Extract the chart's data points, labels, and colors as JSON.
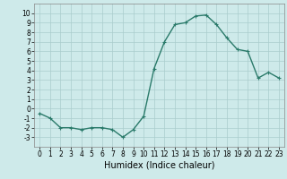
{
  "x": [
    0,
    1,
    2,
    3,
    4,
    5,
    6,
    7,
    8,
    9,
    10,
    11,
    12,
    13,
    14,
    15,
    16,
    17,
    18,
    19,
    20,
    21,
    22,
    23
  ],
  "y": [
    -0.5,
    -1.0,
    -2.0,
    -2.0,
    -2.2,
    -2.0,
    -2.0,
    -2.2,
    -3.0,
    -2.2,
    -0.8,
    4.2,
    7.0,
    8.8,
    9.0,
    9.7,
    9.8,
    8.8,
    7.4,
    6.2,
    6.0,
    3.2,
    3.8,
    3.2
  ],
  "line_color": "#2a7a6a",
  "marker": "+",
  "markersize": 3,
  "linewidth": 1.0,
  "bg_color": "#ceeaea",
  "grid_color": "#aacccc",
  "xlabel": "Humidex (Indice chaleur)",
  "xlim": [
    -0.5,
    23.5
  ],
  "ylim": [
    -4,
    11
  ],
  "yticks": [
    -3,
    -2,
    -1,
    0,
    1,
    2,
    3,
    4,
    5,
    6,
    7,
    8,
    9,
    10
  ],
  "xticks": [
    0,
    1,
    2,
    3,
    4,
    5,
    6,
    7,
    8,
    9,
    10,
    11,
    12,
    13,
    14,
    15,
    16,
    17,
    18,
    19,
    20,
    21,
    22,
    23
  ],
  "tick_fontsize": 5.5,
  "xlabel_fontsize": 7
}
